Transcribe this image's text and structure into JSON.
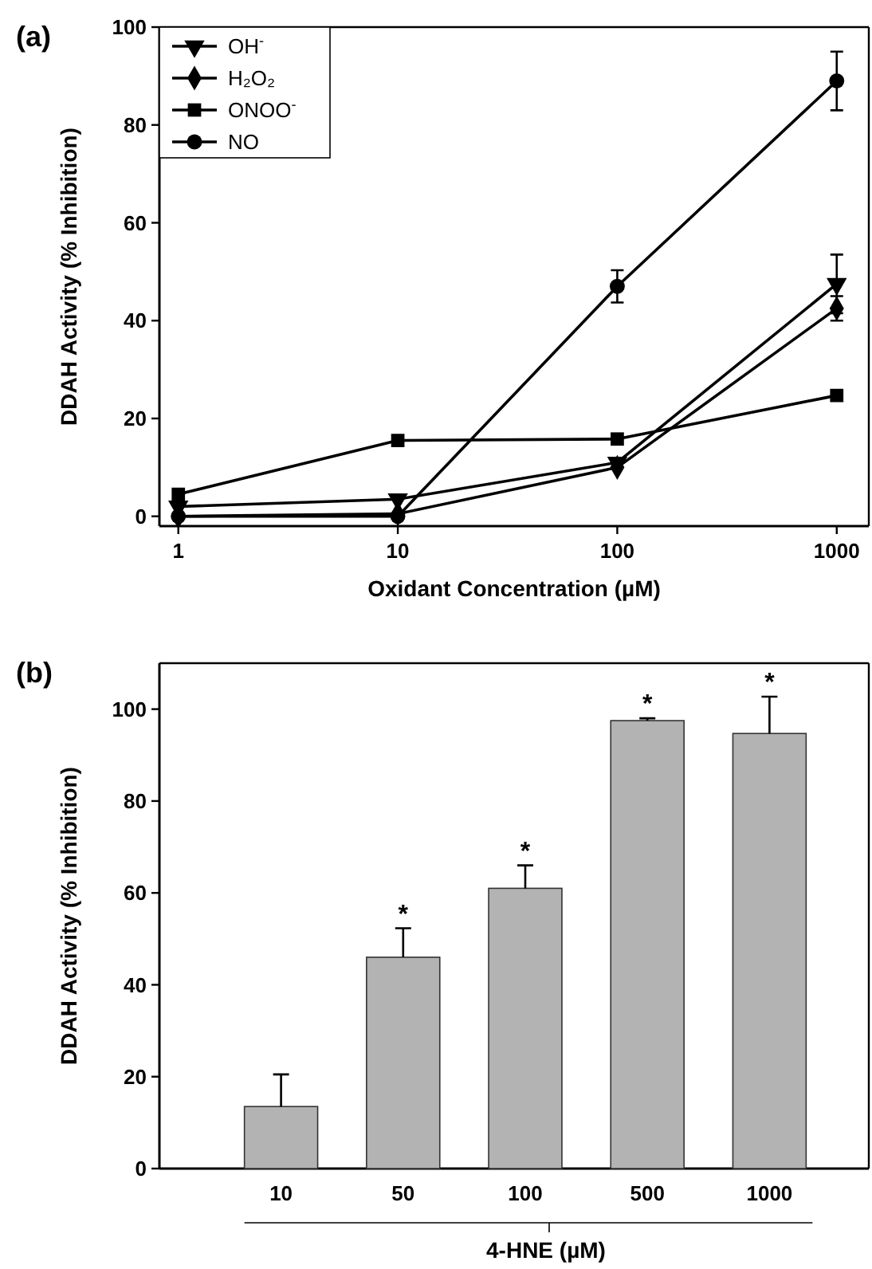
{
  "chart_data": [
    {
      "type": "line",
      "title": "(a)",
      "xlabel": "Oxidant Concentration (µM)",
      "ylabel": "DDAH Activity (% Inhibition)",
      "log": "x",
      "x": [
        1,
        10,
        100,
        1000
      ],
      "xlim": [
        0.82,
        1400
      ],
      "xticks": [
        1,
        10,
        100,
        1000
      ],
      "ylim": [
        -2,
        100
      ],
      "yticks": [
        0,
        20,
        40,
        60,
        80,
        100
      ],
      "grid": false,
      "legend": "top left",
      "line_style": "solid",
      "series": [
        {
          "name": "OH$^{-}$",
          "color": "#000000",
          "marker": "triangle",
          "values": [
            2,
            3.5,
            11,
            47.5
          ],
          "errors": [
            null,
            null,
            null,
            6
          ]
        },
        {
          "name": "H₂O₂",
          "color": "#000000",
          "marker": "diamond",
          "values": [
            0,
            0.5,
            10,
            42.5
          ],
          "errors": [
            null,
            null,
            null,
            2.5
          ]
        },
        {
          "name": "ONOO$^{-}$",
          "color": "#000000",
          "marker": "square",
          "values": [
            4.5,
            15.5,
            15.8,
            24.7
          ],
          "errors": [
            null,
            null,
            null,
            null
          ]
        },
        {
          "name": "NO",
          "color": "#000000",
          "marker": "circle",
          "values": [
            0,
            0,
            47,
            89
          ],
          "errors": [
            null,
            null,
            3.3,
            6
          ]
        }
      ]
    },
    {
      "type": "bar",
      "title": "(b)",
      "xlabel": "4-HNE (µM)",
      "ylabel": "DDAH Activity (% Inhibition)",
      "categories": [
        "10",
        "50",
        "100",
        "500",
        "1000"
      ],
      "values": [
        13.5,
        46,
        61,
        97.5,
        94.7
      ],
      "color": "#b3b3b3",
      "errors": [
        [
          13.5,
          20.5
        ],
        [
          46,
          52.3
        ],
        [
          61,
          66
        ],
        [
          97.5,
          98
        ],
        [
          94.7,
          102.7
        ]
      ],
      "ylim": [
        0,
        110
      ],
      "yticks": [
        0,
        20,
        40,
        60,
        80,
        100
      ],
      "annotations": [
        "*",
        "*",
        "*",
        "*"
      ]
    }
  ]
}
